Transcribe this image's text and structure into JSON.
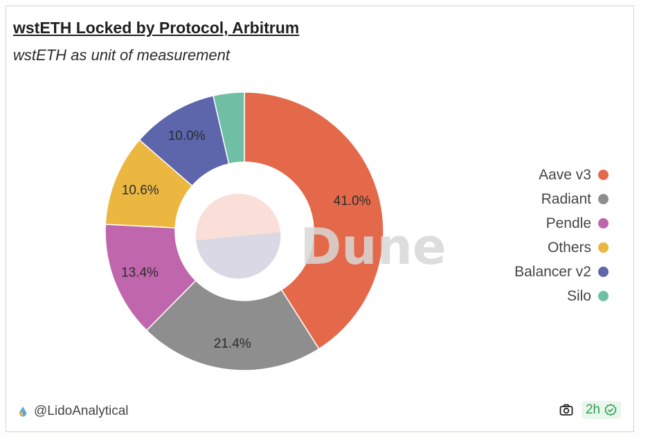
{
  "title": "wstETH Locked by Protocol, Arbitrum",
  "subtitle": "wstETH as unit of measurement",
  "watermark": "Dune",
  "author": "@LidoAnalytical",
  "refresh_badge": "2h",
  "icons": {
    "author": "lido-drop-icon",
    "camera": "camera-icon",
    "refresh": "check-badge-icon"
  },
  "chart_data": {
    "type": "pie",
    "style": "donut",
    "legend_position": "right",
    "slices": [
      {
        "label": "Aave v3",
        "value": 41.0,
        "display": "41.0%",
        "color": "#e4694a"
      },
      {
        "label": "Radiant",
        "value": 21.4,
        "display": "21.4%",
        "color": "#8e8e8e"
      },
      {
        "label": "Pendle",
        "value": 13.4,
        "display": "13.4%",
        "color": "#bf66ad"
      },
      {
        "label": "Others",
        "value": 10.6,
        "display": "10.6%",
        "color": "#ebb740"
      },
      {
        "label": "Balancer v2",
        "value": 10.0,
        "display": "10.0%",
        "color": "#5d65ab"
      },
      {
        "label": "Silo",
        "value": 3.6,
        "display": "",
        "color": "#6fbfa5"
      }
    ]
  }
}
